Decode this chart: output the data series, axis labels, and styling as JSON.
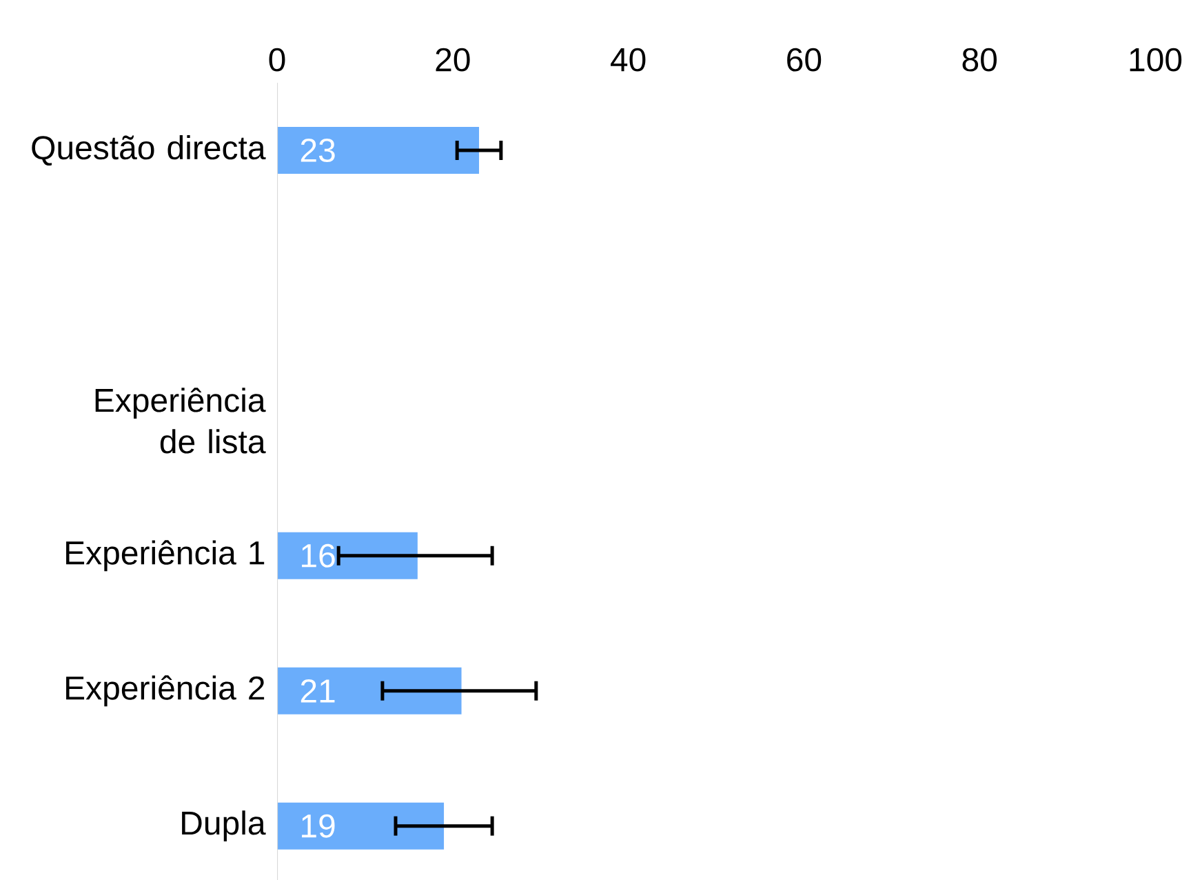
{
  "chart_data": {
    "type": "bar",
    "orientation": "horizontal",
    "categories": [
      "Questão directa",
      null,
      "Experiência de lista",
      "Experiência 1",
      "Experiência 2",
      "Dupla"
    ],
    "values": [
      23,
      null,
      null,
      16,
      21,
      19
    ],
    "errors": [
      [
        20.5,
        25.5
      ],
      null,
      null,
      [
        7,
        24.5
      ],
      [
        12,
        29.5
      ],
      [
        13.5,
        24.5
      ]
    ],
    "color": "#6aadfb",
    "xlim": [
      0,
      100
    ],
    "xticks": [
      0,
      20,
      40,
      60,
      80,
      100
    ],
    "data_labels": true,
    "grid": false
  }
}
